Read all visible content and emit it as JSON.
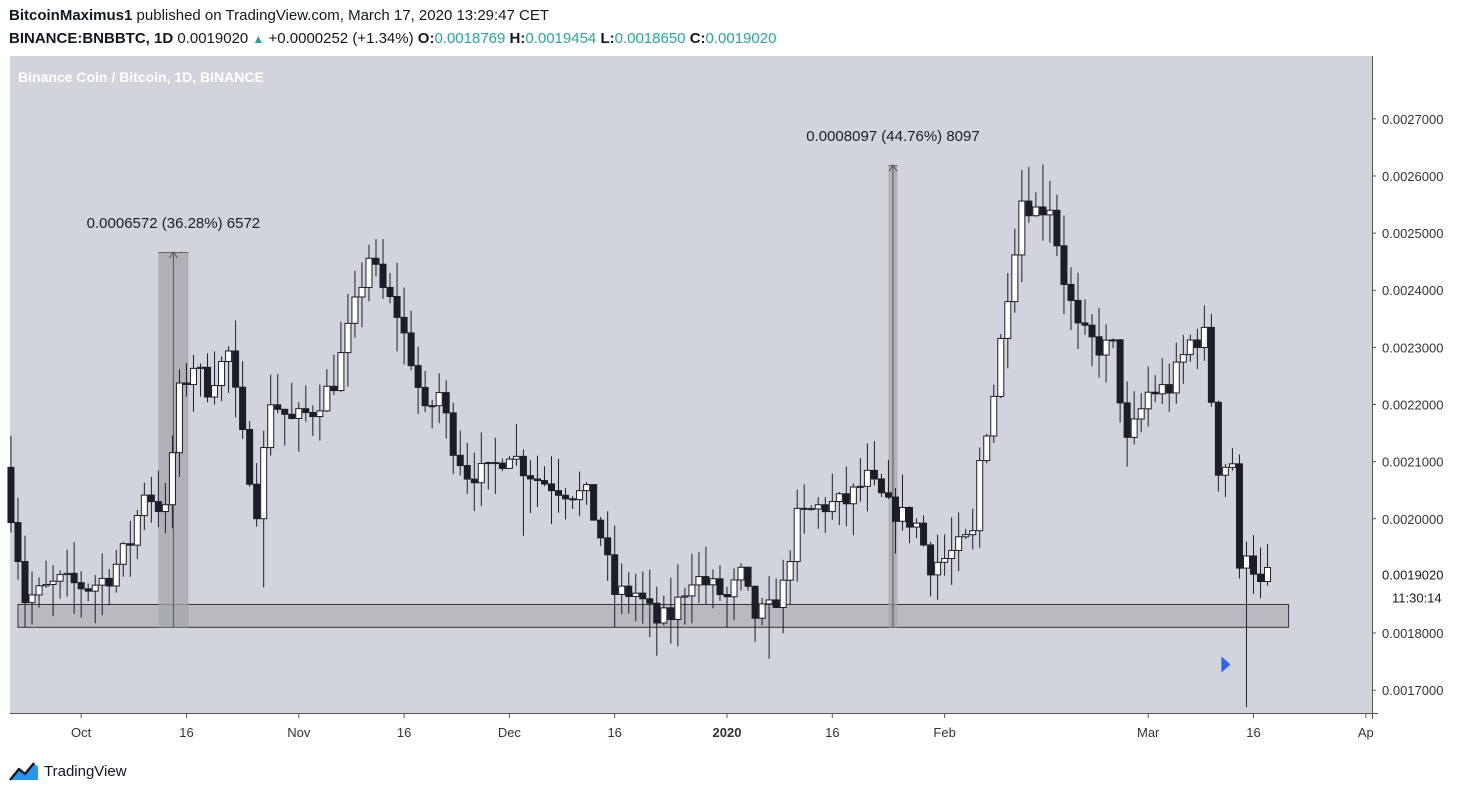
{
  "header": {
    "publisher": "BitcoinMaximus1",
    "published_text": "published on TradingView.com, March 17, 2020 13:29:47 CET",
    "symbol": "BINANCE:BNBBTC, 1D",
    "last": "0.0019020",
    "change": "+0.0000252 (+1.34%)",
    "o_label": "O:",
    "o": "0.0018769",
    "h_label": "H:",
    "h": "0.0019454",
    "l_label": "L:",
    "l": "0.0018650",
    "c_label": "C:",
    "c": "0.0019020"
  },
  "footer": {
    "brand": "TradingView",
    "logo_icon": "tradingview-logo-icon"
  },
  "colors": {
    "plot_bg": "#d1d4dc",
    "bull_body": "#ffffff",
    "bear_body": "#1b1e27",
    "wick": "#1b1e27",
    "zone": "#a6a8ae",
    "measure": "#a3a5ab",
    "arrow_marker": "#2962ff"
  },
  "chart_data": {
    "type": "candlestick",
    "title": "Binance Coin / Bitcoin, 1D, BINANCE",
    "ylim": [
      0.00166,
      0.00281
    ],
    "y_ticks": [
      "0.0027000",
      "0.0026000",
      "0.0025000",
      "0.0024000",
      "0.0023000",
      "0.0022000",
      "0.0021000",
      "0.0020000",
      "0.0018000",
      "0.0017000"
    ],
    "x_ticks": [
      {
        "label": "Oct",
        "day": 0
      },
      {
        "label": "16",
        "day": 15
      },
      {
        "label": "Nov",
        "day": 31
      },
      {
        "label": "16",
        "day": 46
      },
      {
        "label": "Dec",
        "day": 61
      },
      {
        "label": "16",
        "day": 76
      },
      {
        "label": "2020",
        "day": 92,
        "bold": true
      },
      {
        "label": "16",
        "day": 107
      },
      {
        "label": "Feb",
        "day": 123
      },
      {
        "label": "Mar",
        "day": 152
      },
      {
        "label": "16",
        "day": 167
      },
      {
        "label": "Ap",
        "day": 183
      }
    ],
    "last_price_label": "0.0019020",
    "countdown": "11:30:14",
    "support_zone": {
      "low": 0.00181,
      "high": 0.00185,
      "from_day": -9,
      "to_day": 172
    },
    "measurements": [
      {
        "from_day": 11,
        "to_day": 15,
        "low": 0.00181,
        "high": 0.002467,
        "label": "0.0006572 (36.28%) 6572"
      },
      {
        "from_day": 115,
        "to_day": 116,
        "low": 0.00181,
        "high": 0.002619,
        "label": "0.0008097 (44.76%) 8097"
      }
    ],
    "arrow_marker": {
      "day": 163,
      "value": 0.001745
    },
    "waypoints": [
      [
        -10,
        0.00209
      ],
      [
        -7,
        0.00186
      ],
      [
        -5,
        0.00187
      ],
      [
        -2,
        0.00189
      ],
      [
        2,
        0.00188
      ],
      [
        5,
        0.0019
      ],
      [
        8,
        0.00196
      ],
      [
        10,
        0.00205
      ],
      [
        13,
        0.00201
      ],
      [
        15,
        0.00222
      ],
      [
        17,
        0.00227
      ],
      [
        19,
        0.00223
      ],
      [
        22,
        0.00229
      ],
      [
        24,
        0.00214
      ],
      [
        26,
        0.00202
      ],
      [
        28,
        0.00221
      ],
      [
        31,
        0.00217
      ],
      [
        34,
        0.00219
      ],
      [
        37,
        0.00224
      ],
      [
        40,
        0.00237
      ],
      [
        42,
        0.00246
      ],
      [
        44,
        0.0024
      ],
      [
        46,
        0.00236
      ],
      [
        48,
        0.00228
      ],
      [
        50,
        0.00218
      ],
      [
        52,
        0.00222
      ],
      [
        54,
        0.00213
      ],
      [
        56,
        0.00208
      ],
      [
        59,
        0.00208
      ],
      [
        62,
        0.00212
      ],
      [
        64,
        0.00209
      ],
      [
        66,
        0.00207
      ],
      [
        70,
        0.00205
      ],
      [
        73,
        0.00204
      ],
      [
        75,
        0.00197
      ],
      [
        77,
        0.00187
      ],
      [
        80,
        0.00187
      ],
      [
        83,
        0.00182
      ],
      [
        85,
        0.00183
      ],
      [
        88,
        0.0019
      ],
      [
        91,
        0.00188
      ],
      [
        93,
        0.00186
      ],
      [
        95,
        0.0019
      ],
      [
        97,
        0.00183
      ],
      [
        99,
        0.00184
      ],
      [
        101,
        0.00188
      ],
      [
        103,
        0.002
      ],
      [
        106,
        0.00202
      ],
      [
        110,
        0.00203
      ],
      [
        113,
        0.00207
      ],
      [
        116,
        0.00202
      ],
      [
        120,
        0.00199
      ],
      [
        122,
        0.00192
      ],
      [
        124,
        0.00193
      ],
      [
        126,
        0.00195
      ],
      [
        128,
        0.00197
      ],
      [
        129,
        0.0021
      ],
      [
        131,
        0.00222
      ],
      [
        133,
        0.0024
      ],
      [
        135,
        0.00256
      ],
      [
        137,
        0.00254
      ],
      [
        139,
        0.00255
      ],
      [
        141,
        0.00242
      ],
      [
        143,
        0.00233
      ],
      [
        146,
        0.0023
      ],
      [
        148,
        0.0023
      ],
      [
        150,
        0.00213
      ],
      [
        153,
        0.00222
      ],
      [
        156,
        0.00223
      ],
      [
        159,
        0.00231
      ],
      [
        161,
        0.00232
      ],
      [
        162,
        0.00221
      ],
      [
        163,
        0.00209
      ],
      [
        165,
        0.0021
      ],
      [
        166,
        0.0019
      ],
      [
        167,
        0.00195
      ],
      [
        169,
        0.00188
      ],
      [
        170,
        0.0019
      ]
    ]
  }
}
